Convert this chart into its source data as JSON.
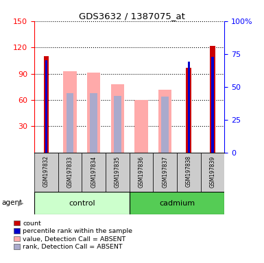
{
  "title": "GDS3632 / 1387075_at",
  "samples": [
    "GSM197832",
    "GSM197833",
    "GSM197834",
    "GSM197835",
    "GSM197836",
    "GSM197837",
    "GSM197838",
    "GSM197839"
  ],
  "count_values": [
    110,
    0,
    0,
    0,
    0,
    0,
    97,
    122
  ],
  "value_absent": [
    0,
    93,
    91,
    78,
    60,
    72,
    0,
    0
  ],
  "rank_absent": [
    0,
    68,
    68,
    65,
    0,
    64,
    0,
    0
  ],
  "percentile_rank": [
    70,
    0,
    0,
    0,
    0,
    0,
    69,
    73
  ],
  "ylim_left": [
    0,
    150
  ],
  "ylim_right": [
    0,
    100
  ],
  "yticks_left": [
    30,
    60,
    90,
    120,
    150
  ],
  "yticks_right": [
    0,
    25,
    50,
    75,
    100
  ],
  "yticklabels_right": [
    "0",
    "25",
    "50",
    "75",
    "100%"
  ],
  "color_count": "#cc0000",
  "color_percentile": "#0000cc",
  "color_value_absent": "#ffaaaa",
  "color_rank_absent": "#aaaacc",
  "color_control_bg": "#ccffcc",
  "color_cadmium_bg": "#55cc55",
  "color_sample_bg": "#cccccc",
  "legend_items": [
    {
      "label": "count",
      "color": "#cc0000"
    },
    {
      "label": "percentile rank within the sample",
      "color": "#0000cc"
    },
    {
      "label": "value, Detection Call = ABSENT",
      "color": "#ffaaaa"
    },
    {
      "label": "rank, Detection Call = ABSENT",
      "color": "#aaaacc"
    }
  ],
  "bar_width": 0.55,
  "count_bar_width": 0.22,
  "percentile_bar_width": 0.1
}
